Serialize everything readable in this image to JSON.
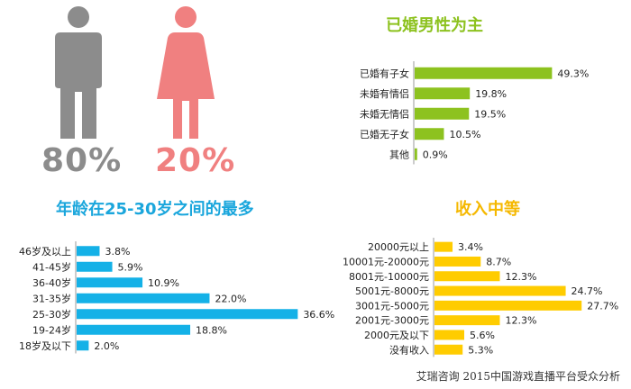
{
  "gender": {
    "male": {
      "percent": "80%",
      "color": "#8c8c8c"
    },
    "female": {
      "percent": "20%",
      "color": "#f08080"
    }
  },
  "source": "艾瑞咨询  2015中国游戏直播平台受众分析",
  "chart_data": [
    {
      "type": "bar",
      "orientation": "horizontal",
      "title": "已婚男性为主",
      "title_color": "#8dc21f",
      "bar_color": "#8dc21f",
      "categories": [
        "已婚有子女",
        "未婚有情侣",
        "未婚无情侣",
        "已婚无子女",
        "其他"
      ],
      "values": [
        49.3,
        19.8,
        19.5,
        10.5,
        0.9
      ],
      "value_labels": [
        "49.3%",
        "19.8%",
        "19.5%",
        "10.5%",
        "0.9%"
      ],
      "xlim": [
        0,
        55
      ]
    },
    {
      "type": "bar",
      "orientation": "horizontal",
      "title": "年龄在25-30岁之间的最多",
      "title_color": "#1aa6dc",
      "bar_color": "#14b1e7",
      "categories": [
        "46岁及以上",
        "41-45岁",
        "36-40岁",
        "31-35岁",
        "25-30岁",
        "19-24岁",
        "18岁及以下"
      ],
      "values": [
        3.8,
        5.9,
        10.9,
        22.0,
        36.6,
        18.8,
        2.0
      ],
      "value_labels": [
        "3.8%",
        "5.9%",
        "10.9%",
        "22.0%",
        "36.6%",
        "18.8%",
        "2.0%"
      ],
      "xlim": [
        0,
        37
      ]
    },
    {
      "type": "bar",
      "orientation": "horizontal",
      "title": "收入中等",
      "title_color": "#f5b800",
      "bar_color": "#ffcc00",
      "categories": [
        "20000元以上",
        "10001元-20000元",
        "8001元-10000元",
        "5001元-8000元",
        "3001元-5000元",
        "2001元-3000元",
        "2000元及以下",
        "没有收入"
      ],
      "values": [
        3.4,
        8.7,
        12.3,
        24.7,
        27.7,
        12.3,
        5.6,
        5.3
      ],
      "value_labels": [
        "3.4%",
        "8.7%",
        "12.3%",
        "24.7%",
        "27.7%",
        "12.3%",
        "5.6%",
        "5.3%"
      ],
      "xlim": [
        0,
        28
      ]
    }
  ]
}
